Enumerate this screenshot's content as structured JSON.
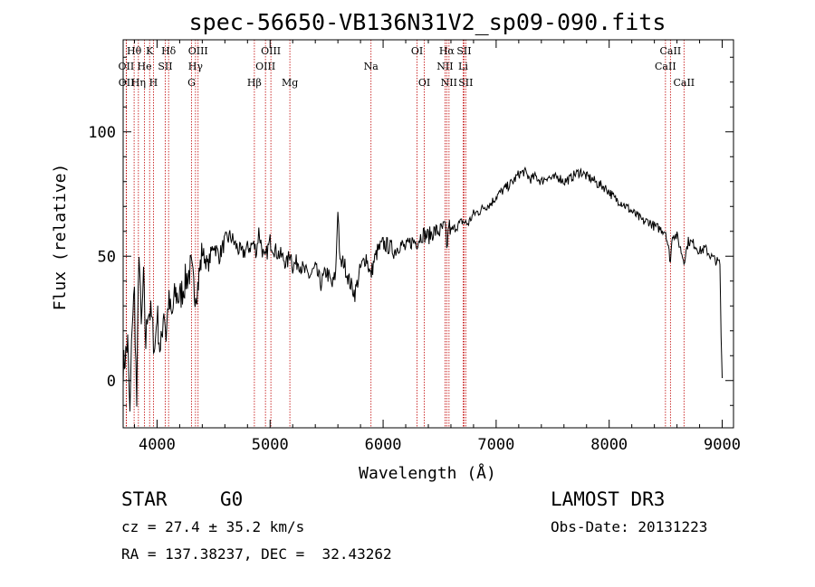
{
  "chart_data": {
    "type": "line",
    "title": "spec-56650-VB136N31V2_sp09-090.fits",
    "xlabel": "Wavelength (Å)",
    "ylabel": "Flux (relative)",
    "xlim": [
      3700,
      9100
    ],
    "ylim": [
      -19,
      137
    ],
    "xticks": [
      4000,
      5000,
      6000,
      7000,
      8000,
      9000
    ],
    "yticks": [
      0,
      50,
      100
    ],
    "series": [
      {
        "name": "spectrum",
        "x": [
          3700,
          3740,
          3760,
          3780,
          3800,
          3820,
          3840,
          3860,
          3880,
          3900,
          3920,
          3950,
          3980,
          4000,
          4030,
          4060,
          4080,
          4100,
          4130,
          4160,
          4200,
          4250,
          4300,
          4330,
          4360,
          4400,
          4450,
          4500,
          4550,
          4600,
          4650,
          4700,
          4750,
          4800,
          4850,
          4880,
          4900,
          4950,
          5000,
          5050,
          5100,
          5150,
          5180,
          5200,
          5250,
          5300,
          5350,
          5400,
          5450,
          5500,
          5550,
          5580,
          5600,
          5620,
          5650,
          5700,
          5750,
          5800,
          5850,
          5890,
          5920,
          5950,
          6000,
          6050,
          6100,
          6150,
          6200,
          6250,
          6300,
          6350,
          6400,
          6450,
          6500,
          6550,
          6563,
          6580,
          6600,
          6650,
          6700,
          6750,
          6800,
          6850,
          6900,
          6950,
          7000,
          7050,
          7100,
          7150,
          7200,
          7250,
          7300,
          7350,
          7400,
          7450,
          7500,
          7550,
          7600,
          7650,
          7700,
          7750,
          7800,
          7850,
          7900,
          7950,
          8000,
          8050,
          8100,
          8150,
          8200,
          8250,
          8300,
          8350,
          8400,
          8450,
          8500,
          8542,
          8560,
          8600,
          8662,
          8700,
          8750,
          8800,
          8850,
          8900,
          8950,
          8980,
          8990,
          9000
        ],
        "y": [
          5,
          15,
          -15,
          25,
          35,
          -10,
          55,
          20,
          40,
          15,
          30,
          25,
          12,
          28,
          10,
          30,
          18,
          32,
          25,
          35,
          33,
          40,
          45,
          36,
          38,
          52,
          46,
          55,
          50,
          56,
          58,
          54,
          51,
          53,
          55,
          52,
          60,
          48,
          56,
          52,
          50,
          47,
          52,
          46,
          48,
          44,
          42,
          45,
          39,
          44,
          38,
          43,
          70,
          46,
          48,
          40,
          35,
          45,
          50,
          42,
          48,
          52,
          55,
          54,
          52,
          55,
          53,
          56,
          56,
          59,
          58,
          60,
          60,
          62,
          52,
          63,
          60,
          62,
          64,
          63,
          67,
          68,
          70,
          71,
          74,
          76,
          78,
          80,
          83,
          84,
          81,
          82,
          80,
          82,
          81,
          82,
          80,
          81,
          83,
          84,
          82,
          81,
          79,
          78,
          76,
          73,
          72,
          70,
          68,
          66,
          64,
          64,
          62,
          61,
          60,
          48,
          59,
          58,
          48,
          56,
          55,
          52,
          53,
          50,
          48,
          47,
          18,
          1
        ]
      }
    ],
    "emission_lines": [
      {
        "name": "OII",
        "wave": 3727,
        "row": 1
      },
      {
        "name": "Hθ",
        "wave": 3797,
        "row": 0
      },
      {
        "name": "OII",
        "wave": 3729,
        "row": 2
      },
      {
        "name": "Hη",
        "wave": 3835,
        "row": 2
      },
      {
        "name": "He",
        "wave": 3889,
        "row": 1
      },
      {
        "name": "K",
        "wave": 3934,
        "row": 0
      },
      {
        "name": "H",
        "wave": 3968,
        "row": 2
      },
      {
        "name": "SII",
        "wave": 4072,
        "row": 1
      },
      {
        "name": "Hδ",
        "wave": 4102,
        "row": 0
      },
      {
        "name": "OIII",
        "wave": 4363,
        "row": 0
      },
      {
        "name": "Hγ",
        "wave": 4340,
        "row": 1
      },
      {
        "name": "G",
        "wave": 4305,
        "row": 2
      },
      {
        "name": "Hβ",
        "wave": 4861,
        "row": 2
      },
      {
        "name": "OIII",
        "wave": 5007,
        "row": 0
      },
      {
        "name": "OIII",
        "wave": 4959,
        "row": 1
      },
      {
        "name": "Mg",
        "wave": 5175,
        "row": 2
      },
      {
        "name": "Na",
        "wave": 5893,
        "row": 1
      },
      {
        "name": "OI",
        "wave": 6300,
        "row": 0
      },
      {
        "name": "OI",
        "wave": 6364,
        "row": 2
      },
      {
        "name": "Hα",
        "wave": 6563,
        "row": 0
      },
      {
        "name": "NII",
        "wave": 6548,
        "row": 1
      },
      {
        "name": "NII",
        "wave": 6583,
        "row": 2
      },
      {
        "name": "SII",
        "wave": 6716,
        "row": 0
      },
      {
        "name": "Li",
        "wave": 6708,
        "row": 1
      },
      {
        "name": "SII",
        "wave": 6731,
        "row": 2
      },
      {
        "name": "CaII",
        "wave": 8542,
        "row": 0
      },
      {
        "name": "CaII",
        "wave": 8498,
        "row": 1
      },
      {
        "name": "CaII",
        "wave": 8662,
        "row": 2
      }
    ]
  },
  "info": {
    "object_type": "STAR",
    "subclass": "G0",
    "survey": "LAMOST DR3",
    "cz": "cz = 27.4 ± 35.2 km/s",
    "obs_date": "Obs-Date: 20131223",
    "coords": "RA = 137.38237, DEC =  32.43262"
  },
  "colors": {
    "line_color": "#000000",
    "marker_color": "#c00000"
  }
}
